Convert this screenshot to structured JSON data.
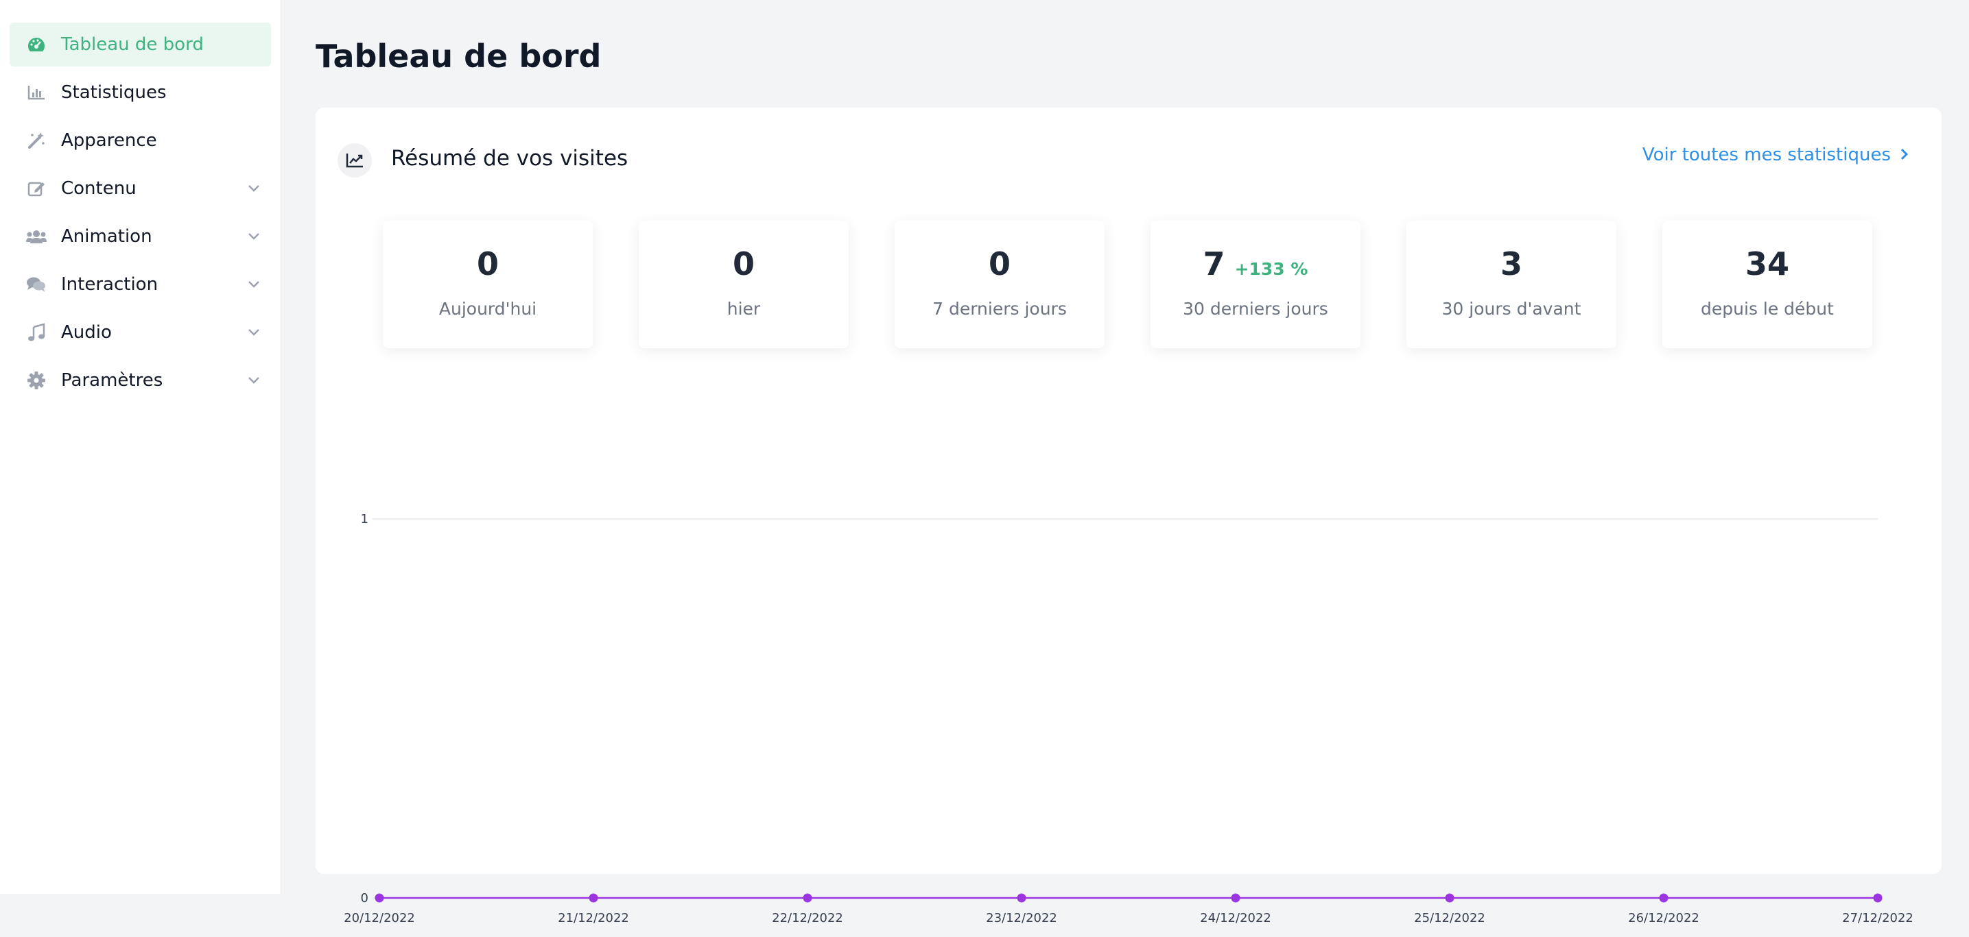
{
  "sidebar": {
    "items": [
      {
        "label": "Tableau de bord",
        "icon": "gauge-icon",
        "active": true
      },
      {
        "label": "Statistiques",
        "icon": "bar-chart-icon"
      },
      {
        "label": "Apparence",
        "icon": "magic-wand-icon"
      },
      {
        "label": "Contenu",
        "icon": "edit-icon",
        "expandable": true
      },
      {
        "label": "Animation",
        "icon": "users-icon",
        "expandable": true
      },
      {
        "label": "Interaction",
        "icon": "comments-icon",
        "expandable": true
      },
      {
        "label": "Audio",
        "icon": "music-note-icon",
        "expandable": true
      },
      {
        "label": "Paramètres",
        "icon": "gear-icon",
        "expandable": true
      }
    ]
  },
  "page": {
    "title": "Tableau de bord"
  },
  "card": {
    "title": "Résumé de vos visites",
    "icon": "trend-chart-icon",
    "link_label": "Voir toutes mes statistiques"
  },
  "stats": [
    {
      "value": "0",
      "caption": "Aujourd'hui"
    },
    {
      "value": "0",
      "caption": "hier"
    },
    {
      "value": "0",
      "caption": "7 derniers jours"
    },
    {
      "value": "7",
      "delta": "+133 %",
      "caption": "30 derniers jours"
    },
    {
      "value": "3",
      "caption": "30 jours d'avant"
    },
    {
      "value": "34",
      "caption": "depuis le début"
    }
  ],
  "colors": {
    "accent": "#3fb37f",
    "link": "#2f8fe4",
    "series": "#9b35e0"
  },
  "chart_data": {
    "type": "line",
    "x": [
      "20/12/2022",
      "21/12/2022",
      "22/12/2022",
      "23/12/2022",
      "24/12/2022",
      "25/12/2022",
      "26/12/2022",
      "27/12/2022"
    ],
    "series": [
      {
        "values": [
          0,
          0,
          0,
          0,
          0,
          0,
          0,
          0
        ]
      }
    ],
    "yticks": [
      "0",
      "1"
    ],
    "ylim": [
      0,
      1
    ],
    "grid": true
  }
}
